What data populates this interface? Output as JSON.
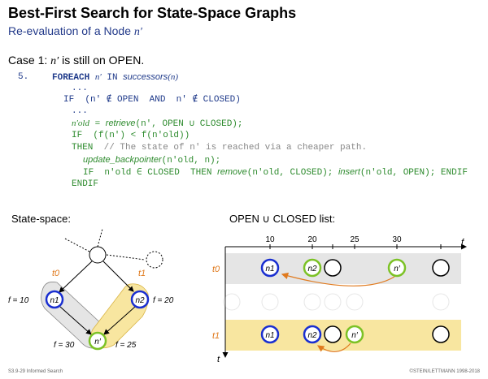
{
  "header": {
    "title": "Best-First Search for State-Space Graphs",
    "subtitle_prefix": "Re-evaluation of a Node ",
    "subtitle_var": "n′"
  },
  "case": {
    "prefix": "Case 1: ",
    "var": "n′",
    "suffix": " is still on OPEN."
  },
  "code": {
    "line_no": "5.",
    "l1_kw": "FOREACH",
    "l1_var": "n′",
    "l1_in": "IN",
    "l1_fn": "successors",
    "l1_arg": "(n)",
    "dots": "...",
    "l2": "IF  (n′ ∉ OPEN  AND  n′ ∉ CLOSED)",
    "l3_a": "n′old",
    "l3_b": " = ",
    "l3_fn": "retrieve",
    "l3_c": "(n′, OPEN ∪ CLOSED);",
    "l4": "IF  (f(n′) < f(n′old))",
    "l5_then": "THEN",
    "l5_comment": "// The state of n′ is reached via a cheaper path.",
    "l6_fn": "update_backpointer",
    "l6_args": "(n′old, n);",
    "l7_if": "IF  n′old ∈ CLOSED  THEN",
    "l7_fn1": "remove",
    "l7_args1": "(n′old, CLOSED);",
    "l7_fn2": "insert",
    "l7_args2": "(n′old, OPEN);",
    "l7_end": "ENDIF",
    "l8": "ENDIF"
  },
  "state_space": {
    "label": "State-space:",
    "t0": "t0",
    "t1": "t1",
    "n1": "n1",
    "n2": "n2",
    "nprime": "n′",
    "f10": "f = 10",
    "f20": "f = 20",
    "f30": "f = 30",
    "f25": "f = 25"
  },
  "open_list": {
    "label": "OPEN ∪ CLOSED list:",
    "axis_f": "f",
    "axis_t": "t",
    "ticks": [
      "10",
      "20",
      "25",
      "30"
    ],
    "row_t0": "t0",
    "row_t1": "t1",
    "n1": "n1",
    "n2": "n2",
    "nprime": "n′"
  },
  "footer": {
    "left": "S3.9-29    Informed Search",
    "right": "©STEIN/LETTMANN 1998-2018"
  },
  "colors": {
    "blue": "#1a2fd0",
    "green": "#7cc226",
    "orange": "#e07a1e",
    "gray_band": "#e5e5e5",
    "yellow_band": "#f8e6a0"
  }
}
